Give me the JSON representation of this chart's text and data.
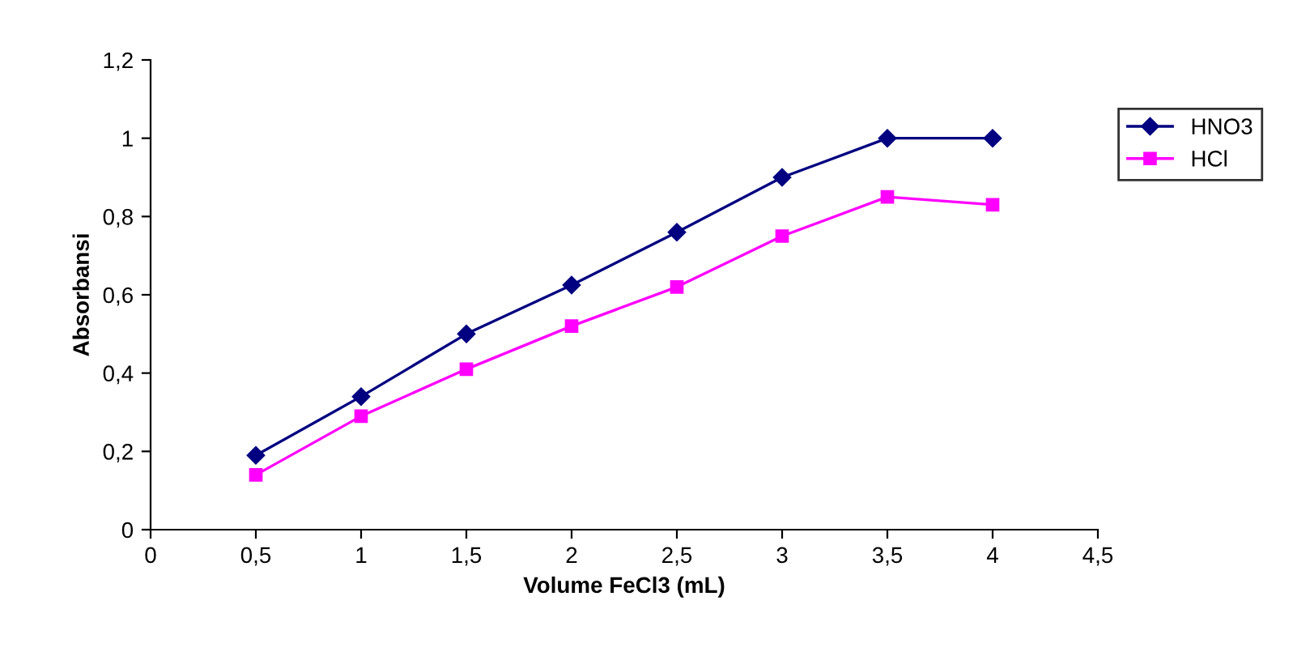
{
  "chart_data": {
    "type": "line",
    "xlabel": "Volume FeCl3 (mL)",
    "ylabel": "Absorbansi",
    "x": [
      0.5,
      1,
      1.5,
      2,
      2.5,
      3,
      3.5,
      4
    ],
    "series": [
      {
        "name": "HNO3",
        "color": "#000080",
        "marker": "diamond",
        "values": [
          0.19,
          0.34,
          0.5,
          0.625,
          0.76,
          0.9,
          1.0,
          1.0
        ]
      },
      {
        "name": "HCl",
        "color": "#ff00ff",
        "marker": "square",
        "values": [
          0.14,
          0.29,
          0.41,
          0.52,
          0.62,
          0.75,
          0.85,
          0.83
        ]
      }
    ],
    "xlim": [
      0,
      4.5
    ],
    "ylim": [
      0,
      1.2
    ],
    "xticks": [
      0,
      {
        "value": 0.5,
        "label": "0,5"
      },
      1,
      {
        "value": 1.5,
        "label": "1,5"
      },
      2,
      {
        "value": 2.5,
        "label": "2,5"
      },
      3,
      {
        "value": 3.5,
        "label": "3,5"
      },
      4,
      {
        "value": 4.5,
        "label": "4,5"
      }
    ],
    "yticks": [
      0,
      {
        "value": 0.2,
        "label": "0,2"
      },
      {
        "value": 0.4,
        "label": "0,4"
      },
      {
        "value": 0.6,
        "label": "0,6"
      },
      {
        "value": 0.8,
        "label": "0,8"
      },
      1,
      {
        "value": 1.2,
        "label": "1,2"
      }
    ],
    "grid": false,
    "legend": "right",
    "line_style": "solid"
  }
}
